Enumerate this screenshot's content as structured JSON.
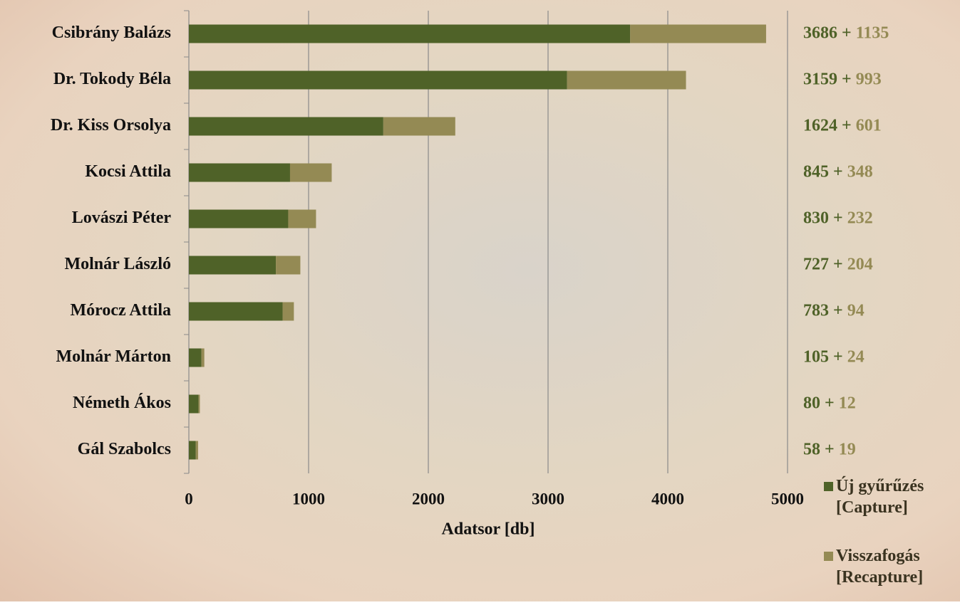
{
  "chart_data": {
    "type": "stacked-bar-horizontal",
    "categories": [
      "Csibrány Balázs",
      "Dr. Tokody Béla",
      "Dr. Kiss Orsolya",
      "Kocsi Attila",
      "Lovászi Péter",
      "Molnár László",
      "Mórocz Attila",
      "Molnár Márton",
      "Németh Ákos",
      "Gál Szabolcs"
    ],
    "series": [
      {
        "name": "Új gyűrűzés [Capture]",
        "color": "#4f6228",
        "values": [
          3686,
          3159,
          1624,
          845,
          830,
          727,
          783,
          105,
          80,
          58
        ]
      },
      {
        "name": "Visszafogás [Recapture]",
        "color": "#948a54",
        "values": [
          1135,
          993,
          601,
          348,
          232,
          204,
          94,
          24,
          12,
          19
        ]
      }
    ],
    "value_label_separator": "+",
    "x_label": "Adatsor [db]",
    "xlim": [
      0,
      5000
    ],
    "xticks": [
      0,
      1000,
      2000,
      3000,
      4000,
      5000
    ],
    "grid": true,
    "legend": "bottom-right"
  }
}
